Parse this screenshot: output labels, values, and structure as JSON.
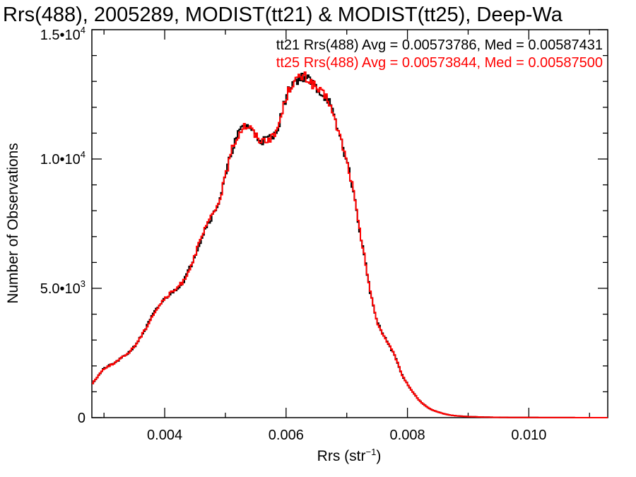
{
  "chart_data": {
    "type": "histogram-step",
    "title": "Rrs(488), 2005289, MODIST(tt21) & MODIST(tt25), Deep-Wa",
    "xlabel_base": "Rrs (str",
    "xlabel_exp": "−1",
    "xlabel_close": ")",
    "ylabel": "Number of Observations",
    "xlim": [
      0.0028,
      0.0113
    ],
    "ylim": [
      0,
      15000
    ],
    "grid": false,
    "x_ticks": [
      {
        "value": 0.004,
        "label": "0.004"
      },
      {
        "value": 0.006,
        "label": "0.006"
      },
      {
        "value": 0.008,
        "label": "0.008"
      },
      {
        "value": 0.01,
        "label": "0.010"
      }
    ],
    "y_ticks": [
      {
        "value": 0,
        "mant": "0",
        "exp": ""
      },
      {
        "value": 5000,
        "mant": "5.0•10",
        "exp": "3"
      },
      {
        "value": 10000,
        "mant": "1.0•10",
        "exp": "4"
      },
      {
        "value": 15000,
        "mant": "1.5•10",
        "exp": "4"
      }
    ],
    "annotations": [
      {
        "text": "tt21 Rrs(488) Avg = 0.00573786, Med = 0.00587431",
        "color": "#000000"
      },
      {
        "text": "tt25 Rrs(488) Avg = 0.00573844, Med = 0.00587500",
        "color": "#ff0000"
      }
    ],
    "curve": {
      "x": [
        0.0028,
        0.003,
        0.0032,
        0.0034,
        0.0035,
        0.0036,
        0.0037,
        0.0038,
        0.0039,
        0.004,
        0.0041,
        0.0042,
        0.0043,
        0.0044,
        0.0045,
        0.0046,
        0.0047,
        0.0048,
        0.0049,
        0.005,
        0.0051,
        0.0052,
        0.0053,
        0.0054,
        0.0055,
        0.0056,
        0.0057,
        0.0058,
        0.0059,
        0.006,
        0.0061,
        0.0062,
        0.0063,
        0.0064,
        0.0065,
        0.0066,
        0.0067,
        0.0068,
        0.0069,
        0.007,
        0.0071,
        0.0072,
        0.0073,
        0.0074,
        0.0075,
        0.0076,
        0.0077,
        0.0078,
        0.0079,
        0.008,
        0.0081,
        0.0082,
        0.0083,
        0.0084,
        0.0085,
        0.0086,
        0.0087,
        0.0088,
        0.009,
        0.0092,
        0.0094,
        0.0096,
        0.01,
        0.0105,
        0.0113
      ],
      "y": [
        1300,
        1900,
        2150,
        2500,
        2750,
        3100,
        3500,
        3950,
        4300,
        4600,
        4800,
        5000,
        5250,
        5700,
        6300,
        6900,
        7500,
        7850,
        8400,
        9300,
        10300,
        10900,
        11300,
        11250,
        10900,
        10700,
        10800,
        10850,
        11500,
        12400,
        12950,
        13100,
        13200,
        13000,
        12750,
        12500,
        12300,
        11500,
        10800,
        9900,
        8900,
        7400,
        6100,
        4700,
        3700,
        3200,
        2800,
        2350,
        1700,
        1300,
        950,
        650,
        450,
        300,
        220,
        150,
        100,
        70,
        40,
        25,
        15,
        10,
        5,
        2,
        0
      ]
    },
    "series": [
      {
        "name": "tt21",
        "color": "#000000",
        "bins": 340,
        "seed": 21
      },
      {
        "name": "tt25",
        "color": "#ff0000",
        "bins": 340,
        "seed": 25
      }
    ]
  }
}
